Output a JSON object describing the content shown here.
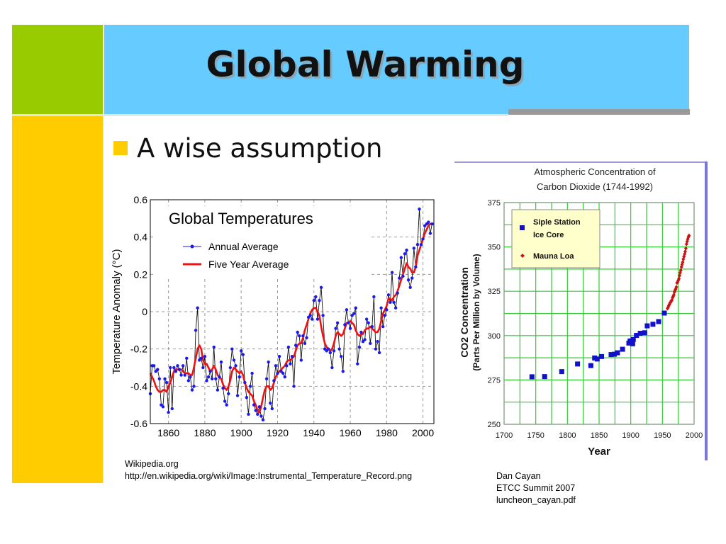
{
  "slide": {
    "title": "Global Warming",
    "bullet": "A wise assumption"
  },
  "credits": {
    "left": [
      "Wikipedia.org",
      "http://en.wikipedia.org/wiki/Image:Instrumental_Temperature_Record.png"
    ],
    "right": [
      "Dan Cayan",
      "ETCC Summit 2007",
      "luncheon_cayan.pdf"
    ]
  },
  "colors": {
    "green": "#99cc00",
    "blue": "#66ccff",
    "yellow": "#ffcc00",
    "annual_series": "#1a1aee",
    "five_year_series": "#ee1111",
    "siple_series": "#1111cc",
    "mauna_loa_series": "#cc1111",
    "co2_grid": "#33cc33"
  },
  "chart_data": [
    {
      "type": "line",
      "title": "Global Temperatures",
      "xlabel": "",
      "ylabel": "Temperature Anomaly (°C)",
      "xlim": [
        1850,
        2006
      ],
      "ylim": [
        -0.6,
        0.6
      ],
      "xticks": [
        1860,
        1880,
        1900,
        1920,
        1940,
        1960,
        1980,
        2000
      ],
      "yticks": [
        -0.6,
        -0.4,
        -0.2,
        0,
        0.2,
        0.4,
        0.6
      ],
      "ytick_labels": [
        "-0.6",
        "-0.4",
        "-0.2",
        "0",
        "0.2",
        "0.4",
        "0.6"
      ],
      "grid": true,
      "legend_position": "top-left",
      "x": [
        1850,
        1851,
        1852,
        1853,
        1854,
        1855,
        1856,
        1857,
        1858,
        1859,
        1860,
        1861,
        1862,
        1863,
        1864,
        1865,
        1866,
        1867,
        1868,
        1869,
        1870,
        1871,
        1872,
        1873,
        1874,
        1875,
        1876,
        1877,
        1878,
        1879,
        1880,
        1881,
        1882,
        1883,
        1884,
        1885,
        1886,
        1887,
        1888,
        1889,
        1890,
        1891,
        1892,
        1893,
        1894,
        1895,
        1896,
        1897,
        1898,
        1899,
        1900,
        1901,
        1902,
        1903,
        1904,
        1905,
        1906,
        1907,
        1908,
        1909,
        1910,
        1911,
        1912,
        1913,
        1914,
        1915,
        1916,
        1917,
        1918,
        1919,
        1920,
        1921,
        1922,
        1923,
        1924,
        1925,
        1926,
        1927,
        1928,
        1929,
        1930,
        1931,
        1932,
        1933,
        1934,
        1935,
        1936,
        1937,
        1938,
        1939,
        1940,
        1941,
        1942,
        1943,
        1944,
        1945,
        1946,
        1947,
        1948,
        1949,
        1950,
        1951,
        1952,
        1953,
        1954,
        1955,
        1956,
        1957,
        1958,
        1959,
        1960,
        1961,
        1962,
        1963,
        1964,
        1965,
        1966,
        1967,
        1968,
        1969,
        1970,
        1971,
        1972,
        1973,
        1974,
        1975,
        1976,
        1977,
        1978,
        1979,
        1980,
        1981,
        1982,
        1983,
        1984,
        1985,
        1986,
        1987,
        1988,
        1989,
        1990,
        1991,
        1992,
        1993,
        1994,
        1995,
        1996,
        1997,
        1998,
        1999,
        2000,
        2001,
        2002,
        2003,
        2004,
        2005
      ],
      "series": [
        {
          "name": "Annual Average",
          "style": "line-with-dots",
          "values": [
            -0.44,
            -0.29,
            -0.29,
            -0.32,
            -0.31,
            -0.36,
            -0.5,
            -0.51,
            -0.36,
            -0.38,
            -0.54,
            -0.3,
            -0.52,
            -0.3,
            -0.32,
            -0.29,
            -0.31,
            -0.34,
            -0.29,
            -0.34,
            -0.25,
            -0.37,
            -0.35,
            -0.42,
            -0.4,
            -0.1,
            0.02,
            -0.26,
            -0.25,
            -0.3,
            -0.24,
            -0.37,
            -0.35,
            -0.32,
            -0.36,
            -0.19,
            -0.36,
            -0.42,
            -0.35,
            -0.27,
            -0.41,
            -0.48,
            -0.5,
            -0.44,
            -0.3,
            -0.2,
            -0.26,
            -0.29,
            -0.45,
            -0.35,
            -0.21,
            -0.23,
            -0.38,
            -0.46,
            -0.55,
            -0.4,
            -0.33,
            -0.5,
            -0.53,
            -0.55,
            -0.51,
            -0.56,
            -0.58,
            -0.52,
            -0.36,
            -0.27,
            -0.49,
            -0.52,
            -0.37,
            -0.29,
            -0.33,
            -0.24,
            -0.32,
            -0.33,
            -0.35,
            -0.29,
            -0.19,
            -0.28,
            -0.24,
            -0.4,
            -0.18,
            -0.11,
            -0.13,
            -0.26,
            -0.13,
            -0.17,
            -0.14,
            -0.03,
            -0.02,
            -0.04,
            0.06,
            0.08,
            -0.04,
            0.06,
            0.13,
            -0.02,
            -0.2,
            -0.21,
            -0.2,
            -0.22,
            -0.3,
            -0.21,
            -0.09,
            -0.06,
            -0.2,
            -0.24,
            -0.32,
            -0.07,
            0.01,
            -0.06,
            -0.09,
            -0.02,
            -0.01,
            0.02,
            -0.28,
            -0.19,
            -0.11,
            -0.16,
            -0.15,
            -0.04,
            -0.06,
            -0.17,
            -0.08,
            0.08,
            -0.2,
            -0.16,
            -0.22,
            0.02,
            -0.08,
            -0.02,
            0.01,
            0.09,
            0.05,
            0.21,
            0.05,
            0.02,
            0.1,
            0.18,
            0.29,
            0.19,
            0.31,
            0.33,
            0.17,
            0.13,
            0.18,
            0.34,
            0.24,
            0.36,
            0.55,
            0.36,
            0.39,
            0.46,
            0.47,
            0.48,
            0.42,
            0.47
          ]
        },
        {
          "name": "Five Year Average",
          "style": "smooth-line",
          "values": [
            -0.33,
            -0.35,
            -0.37,
            -0.4,
            -0.42,
            -0.43,
            -0.43,
            -0.42,
            -0.42,
            -0.43,
            -0.4,
            -0.38,
            -0.35,
            -0.32,
            -0.31,
            -0.31,
            -0.31,
            -0.31,
            -0.32,
            -0.33,
            -0.33,
            -0.33,
            -0.34,
            -0.34,
            -0.3,
            -0.25,
            -0.2,
            -0.18,
            -0.2,
            -0.26,
            -0.28,
            -0.28,
            -0.3,
            -0.32,
            -0.31,
            -0.29,
            -0.31,
            -0.34,
            -0.35,
            -0.36,
            -0.39,
            -0.41,
            -0.42,
            -0.4,
            -0.37,
            -0.32,
            -0.3,
            -0.31,
            -0.32,
            -0.33,
            -0.32,
            -0.34,
            -0.38,
            -0.41,
            -0.43,
            -0.44,
            -0.45,
            -0.48,
            -0.5,
            -0.53,
            -0.54,
            -0.51,
            -0.46,
            -0.42,
            -0.4,
            -0.4,
            -0.42,
            -0.41,
            -0.38,
            -0.35,
            -0.33,
            -0.32,
            -0.31,
            -0.3,
            -0.29,
            -0.27,
            -0.26,
            -0.26,
            -0.25,
            -0.24,
            -0.21,
            -0.18,
            -0.17,
            -0.17,
            -0.14,
            -0.1,
            -0.07,
            -0.04,
            -0.01,
            0.01,
            0.02,
            0.02,
            0.0,
            -0.02,
            -0.08,
            -0.13,
            -0.17,
            -0.19,
            -0.2,
            -0.21,
            -0.2,
            -0.17,
            -0.13,
            -0.11,
            -0.12,
            -0.13,
            -0.12,
            -0.09,
            -0.06,
            -0.06,
            -0.05,
            -0.06,
            -0.07,
            -0.1,
            -0.12,
            -0.13,
            -0.12,
            -0.12,
            -0.1,
            -0.09,
            -0.09,
            -0.08,
            -0.09,
            -0.1,
            -0.11,
            -0.11,
            -0.09,
            -0.05,
            -0.01,
            0.01,
            0.03,
            0.07,
            0.07,
            0.06,
            0.08,
            0.09,
            0.11,
            0.14,
            0.17,
            0.2,
            0.23,
            0.26,
            0.24,
            0.23,
            0.21,
            0.21,
            0.24,
            0.3,
            0.33,
            0.36,
            0.39,
            0.42,
            0.44,
            0.46,
            0.47,
            0.47
          ]
        }
      ]
    },
    {
      "type": "scatter",
      "title": "Atmospheric Concentration of\nCarbon Dioxide (1744-1992)",
      "title_lines": [
        "Atmospheric Concentration of",
        "Carbon Dioxide (1744-1992)"
      ],
      "xlabel": "Year",
      "ylabel_lines": [
        "CO2 Concentration",
        "(Parts Per Million by Volume)"
      ],
      "xlim": [
        1700,
        2000
      ],
      "ylim": [
        250,
        375
      ],
      "xticks": [
        1700,
        1750,
        1800,
        1850,
        1900,
        1950,
        2000
      ],
      "yticks": [
        250,
        275,
        300,
        325,
        350,
        375
      ],
      "grid": true,
      "legend_position": "top-left",
      "series": [
        {
          "name": "Siple Station\nIce Core",
          "name_lines": [
            "Siple Station",
            "Ice Core"
          ],
          "marker": "square",
          "x": [
            1744,
            1764,
            1791,
            1816,
            1837,
            1843,
            1847,
            1854,
            1869,
            1874,
            1879,
            1887,
            1897,
            1899,
            1903,
            1904,
            1909,
            1915,
            1922,
            1926,
            1935,
            1944,
            1953
          ],
          "y": [
            276.8,
            276.9,
            279.7,
            284.0,
            283.1,
            287.4,
            286.8,
            288.2,
            289.3,
            289.5,
            290.3,
            292.3,
            295.8,
            297.0,
            295.4,
            297.8,
            300.1,
            301.3,
            301.6,
            305.5,
            306.4,
            307.9,
            312.7
          ]
        },
        {
          "name": "Mauna Loa",
          "marker": "diamond",
          "x": [
            1958,
            1959,
            1960,
            1961,
            1962,
            1963,
            1964,
            1965,
            1966,
            1967,
            1968,
            1969,
            1970,
            1971,
            1972,
            1973,
            1974,
            1975,
            1976,
            1977,
            1978,
            1979,
            1980,
            1981,
            1982,
            1983,
            1984,
            1985,
            1986,
            1987,
            1988,
            1989,
            1990,
            1991,
            1992
          ],
          "y": [
            315.3,
            316.0,
            316.9,
            317.6,
            318.4,
            318.9,
            319.6,
            320.0,
            321.4,
            322.2,
            323.0,
            324.6,
            325.7,
            326.3,
            327.4,
            329.7,
            330.2,
            331.1,
            332.0,
            333.8,
            335.4,
            336.8,
            338.7,
            340.1,
            341.4,
            343.1,
            344.6,
            346.0,
            347.4,
            349.2,
            351.6,
            353.1,
            354.4,
            355.6,
            356.4
          ]
        }
      ]
    }
  ]
}
